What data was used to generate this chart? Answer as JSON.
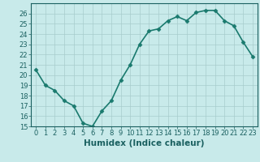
{
  "x": [
    0,
    1,
    2,
    3,
    4,
    5,
    6,
    7,
    8,
    9,
    10,
    11,
    12,
    13,
    14,
    15,
    16,
    17,
    18,
    19,
    20,
    21,
    22,
    23
  ],
  "y": [
    20.5,
    19.0,
    18.5,
    17.5,
    17.0,
    15.3,
    15.0,
    16.5,
    17.5,
    19.5,
    21.0,
    23.0,
    24.3,
    24.5,
    25.3,
    25.7,
    25.3,
    26.1,
    26.3,
    26.3,
    25.3,
    24.8,
    23.2,
    21.8
  ],
  "line_color": "#1a7a6e",
  "marker": "D",
  "marker_size": 2.5,
  "bg_color": "#c8eaea",
  "grid_color": "#a8cccc",
  "xlabel": "Humidex (Indice chaleur)",
  "ylim": [
    15,
    27
  ],
  "xlim": [
    -0.5,
    23.5
  ],
  "yticks": [
    15,
    16,
    17,
    18,
    19,
    20,
    21,
    22,
    23,
    24,
    25,
    26
  ],
  "xticks": [
    0,
    1,
    2,
    3,
    4,
    5,
    6,
    7,
    8,
    9,
    10,
    11,
    12,
    13,
    14,
    15,
    16,
    17,
    18,
    19,
    20,
    21,
    22,
    23
  ],
  "tick_color": "#1a6060",
  "label_fontsize": 7.5,
  "tick_fontsize": 6.0,
  "line_width": 1.2
}
